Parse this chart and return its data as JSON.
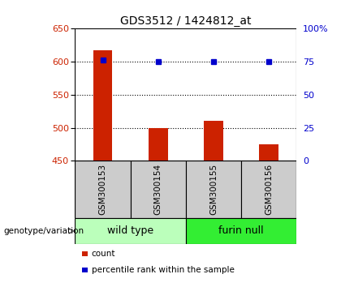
{
  "title": "GDS3512 / 1424812_at",
  "samples": [
    "GSM300153",
    "GSM300154",
    "GSM300155",
    "GSM300156"
  ],
  "bar_values": [
    617,
    500,
    510,
    475
  ],
  "percentile_values": [
    76,
    75,
    75,
    75
  ],
  "bar_color": "#cc2200",
  "dot_color": "#0000cc",
  "ylim_left": [
    450,
    650
  ],
  "ylim_right": [
    0,
    100
  ],
  "yticks_left": [
    450,
    500,
    550,
    600,
    650
  ],
  "yticks_right": [
    0,
    25,
    50,
    75,
    100
  ],
  "ytick_labels_right": [
    "0",
    "25",
    "50",
    "75",
    "100%"
  ],
  "hlines": [
    500,
    550,
    600
  ],
  "groups": [
    {
      "label": "wild type",
      "indices": [
        0,
        1
      ],
      "color": "#bbffbb"
    },
    {
      "label": "furin null",
      "indices": [
        2,
        3
      ],
      "color": "#33ee33"
    }
  ],
  "group_label_prefix": "genotype/variation",
  "legend_items": [
    {
      "color": "#cc2200",
      "label": "count"
    },
    {
      "color": "#0000cc",
      "label": "percentile rank within the sample"
    }
  ],
  "bar_width": 0.35,
  "sample_box_color": "#cccccc",
  "background_color": "#ffffff"
}
